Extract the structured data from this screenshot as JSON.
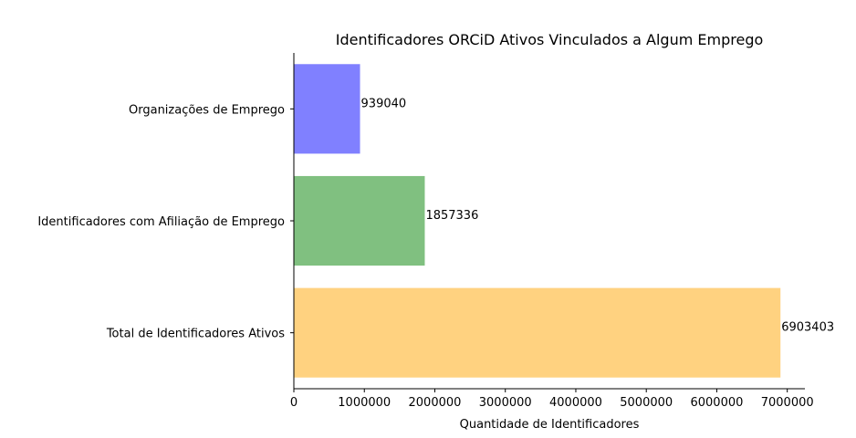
{
  "chart_data": {
    "type": "bar",
    "orientation": "horizontal",
    "title": "Identificadores ORCiD Ativos Vinculados a Algum Emprego",
    "xlabel": "Quantidade de Identificadores",
    "ylabel": "",
    "categories": [
      "Organizações de Emprego",
      "Identificadores com Afiliação de Emprego",
      "Total de Identificadores Ativos"
    ],
    "values": [
      939040,
      1857336,
      6903403
    ],
    "value_labels": [
      "939040",
      "1857336",
      "6903403"
    ],
    "colors": [
      "#8080ff",
      "#80c080",
      "#ffd280"
    ],
    "xlim": [
      0,
      7250000
    ],
    "xticks": [
      0,
      1000000,
      2000000,
      3000000,
      4000000,
      5000000,
      6000000,
      7000000
    ],
    "xtick_labels": [
      "0",
      "1000000",
      "2000000",
      "3000000",
      "4000000",
      "5000000",
      "6000000",
      "7000000"
    ],
    "grid": false,
    "legend": "none"
  }
}
